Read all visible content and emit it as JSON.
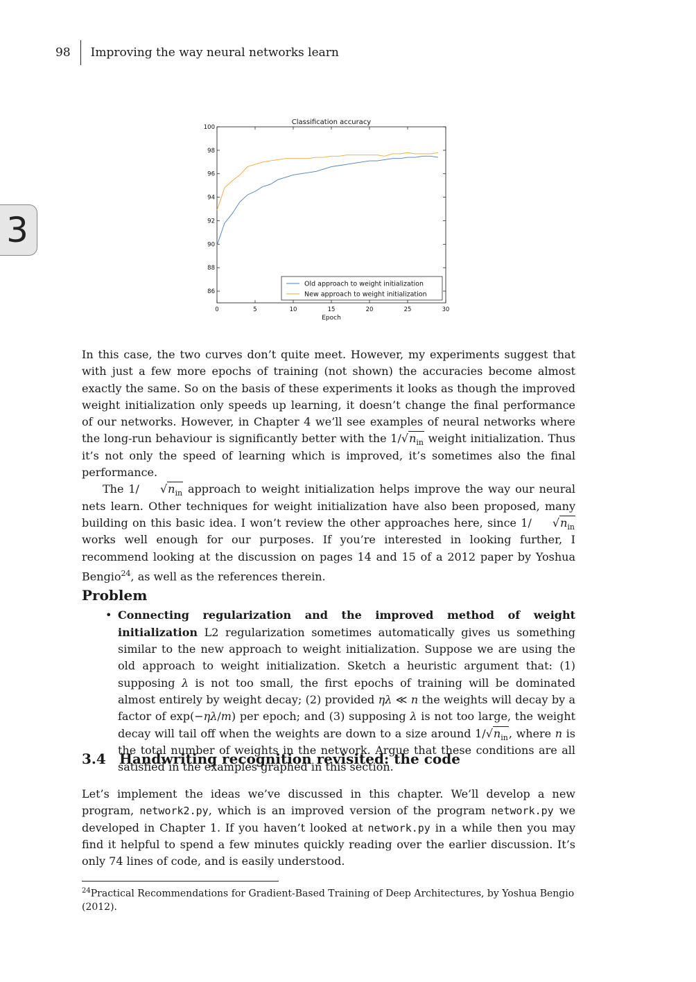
{
  "header": {
    "page_number": "98",
    "title": "Improving the way neural networks learn"
  },
  "chapter_tab": "3",
  "chart_data": {
    "type": "line",
    "title": "Classification accuracy",
    "xlabel": "Epoch",
    "ylabel": "",
    "xlim": [
      0,
      30
    ],
    "ylim": [
      85,
      100
    ],
    "x_ticks": [
      0,
      5,
      10,
      15,
      20,
      25,
      30
    ],
    "y_ticks": [
      86,
      88,
      90,
      92,
      94,
      96,
      98,
      100
    ],
    "grid": false,
    "legend_position": "lower-right",
    "x": [
      0,
      1,
      2,
      3,
      4,
      5,
      6,
      7,
      8,
      9,
      10,
      11,
      12,
      13,
      14,
      15,
      16,
      17,
      18,
      19,
      20,
      21,
      22,
      23,
      24,
      25,
      26,
      27,
      28,
      29
    ],
    "series": [
      {
        "name": "Old approach to weight initialization",
        "color": "#4a80b8",
        "values": [
          89.9,
          91.8,
          92.6,
          93.6,
          94.2,
          94.5,
          94.9,
          95.1,
          95.5,
          95.7,
          95.9,
          96.0,
          96.1,
          96.2,
          96.4,
          96.6,
          96.7,
          96.8,
          96.9,
          97.0,
          97.1,
          97.1,
          97.2,
          97.3,
          97.3,
          97.4,
          97.4,
          97.5,
          97.5,
          97.4
        ]
      },
      {
        "name": "New approach to weight initialization",
        "color": "#f2a93b",
        "values": [
          92.9,
          94.8,
          95.4,
          95.9,
          96.6,
          96.8,
          97.0,
          97.1,
          97.2,
          97.3,
          97.3,
          97.3,
          97.3,
          97.4,
          97.4,
          97.5,
          97.5,
          97.6,
          97.6,
          97.6,
          97.6,
          97.6,
          97.5,
          97.7,
          97.7,
          97.8,
          97.7,
          97.7,
          97.7,
          97.8
        ]
      }
    ]
  },
  "para1": {
    "a": "In this case, the two curves don’t quite meet. However, my experiments suggest that with just a few more epochs of training (not shown) the accuracies become almost exactly the same. So on the basis of these experiments it looks as though the improved weight initialization only speeds up learning, it doesn’t change the final performance of our networks. However, in Chapter 4 we’ll see examples of neural networks where the long-run behaviour is significantly better with the ",
    "b": " weight initialization. Thus it’s not only the speed of learning which is improved, it’s sometimes also the final performance."
  },
  "para2": {
    "a": "The ",
    "b": " approach to weight initialization helps improve the way our neural nets learn. Other techniques for weight initialization have also been proposed, many building on this basic idea. I won’t review the other approaches here, since ",
    "c": " works well enough for our purposes. If you’re interested in looking further, I recommend looking at the discussion on pages 14 and 15 of a 2012 paper by Yoshua Bengio",
    "fn": "24",
    "d": ", as well as the references therein."
  },
  "math": {
    "one_over": "1/",
    "n": "n",
    "in": "in",
    "eta_lambda": "ηλ",
    "lambda": "λ"
  },
  "problem": {
    "heading": "Problem",
    "title": "Connecting regularization and the improved method of weight initialization",
    "s1": " L2 regularization sometimes automatically gives us something similar to the new approach to weight initialization. Suppose we are using the old approach to weight initialization. Sketch a heuristic argument that: (1) supposing ",
    "s2": " is not too small, the first epochs of training will be dominated almost entirely by weight decay; (2) provided ",
    "s3": " ≪ ",
    "s4": " the weights will decay by a factor of exp(−",
    "s5": "/",
    "m": "m",
    "s6": ") per epoch; and (3) supposing ",
    "s7": " is not too large, the weight decay will tail off when the weights are down to a size around ",
    "s8": ", where ",
    "s9": " is the total number of weights in the network. Argue that these conditions are all satisfied in the examples graphed in this section."
  },
  "section": {
    "number": "3.4",
    "title": "Handwriting recognition revisited: the code"
  },
  "para3": {
    "a": "Let’s implement the ideas we’ve discussed in this chapter. We’ll develop a new program, ",
    "code1": "network2.py",
    "b": ", which is an improved version of the program ",
    "code2": "network.py",
    "c": " we developed in Chapter 1. If you haven’t looked at ",
    "code3": "network.py",
    "d": " in a while then you may find it helpful to spend a few minutes quickly reading over the earlier discussion. It’s only 74 lines of code, and is easily understood."
  },
  "footnote": {
    "mark": "24",
    "text": "Practical Recommendations for Gradient-Based Training of Deep Architectures, by Yoshua Bengio (2012)."
  }
}
